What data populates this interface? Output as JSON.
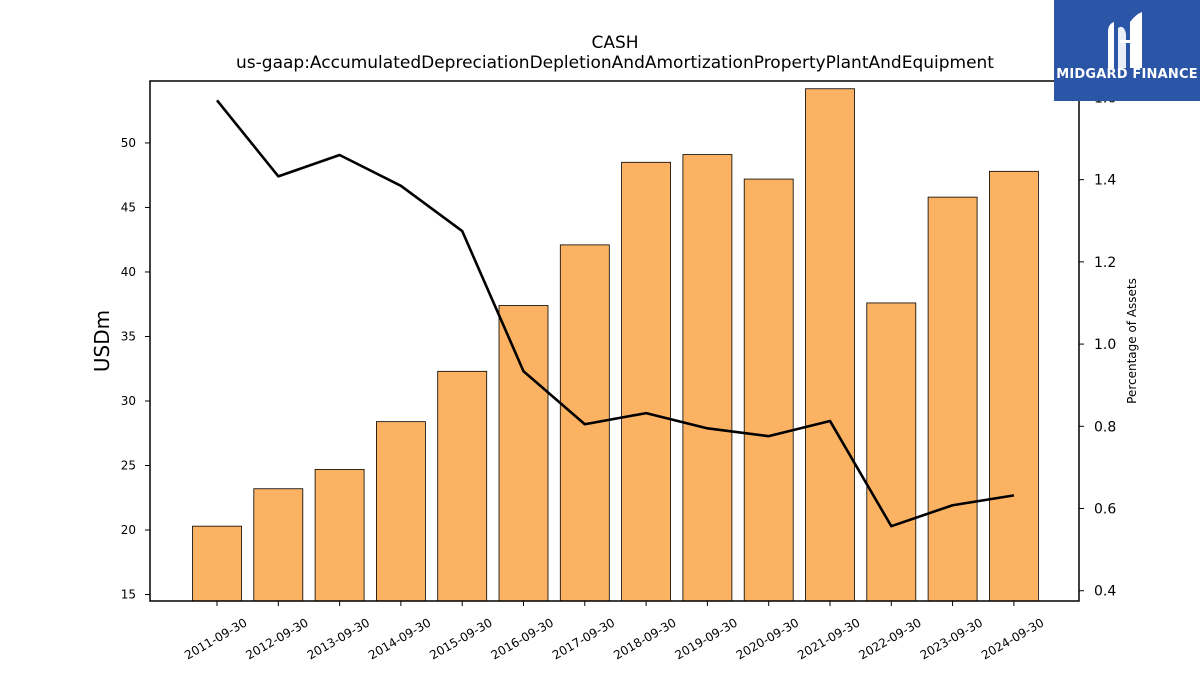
{
  "brand": {
    "name": "MIDGARD FINANCE",
    "logo_icon": "midgard-m-logo-icon",
    "color": "#2b56a8"
  },
  "chart_data": {
    "type": "bar",
    "title": "CASH",
    "subtitle": "us-gaap:AccumulatedDepreciationDepletionAndAmortizationPropertyPlantAndEquipment",
    "ylabel": "USDm",
    "y2label": "Percentage of Assets",
    "categories": [
      "2011-09-30",
      "2012-09-30",
      "2013-09-30",
      "2014-09-30",
      "2015-09-30",
      "2016-09-30",
      "2017-09-30",
      "2018-09-30",
      "2019-09-30",
      "2020-09-30",
      "2021-09-30",
      "2022-09-30",
      "2023-09-30",
      "2024-09-30"
    ],
    "series": [
      {
        "type": "bar",
        "axis": "left",
        "color": "#fbb262",
        "values": [
          20.3,
          23.2,
          24.7,
          28.4,
          32.3,
          37.4,
          42.1,
          48.5,
          49.1,
          47.2,
          54.2,
          37.6,
          45.8,
          47.8
        ]
      },
      {
        "type": "line",
        "axis": "right",
        "color": "#000000",
        "values": [
          1.593,
          1.408,
          1.46,
          1.385,
          1.275,
          0.934,
          0.805,
          0.832,
          0.795,
          0.776,
          0.813,
          0.557,
          0.608,
          0.632
        ]
      }
    ],
    "ylim": [
      14.5,
      54.8
    ],
    "y2lim": [
      0.375,
      1.64
    ],
    "yticks": [
      15,
      20,
      25,
      30,
      35,
      40,
      45,
      50
    ],
    "y2ticks": [
      0.4,
      0.6,
      0.8,
      1.0,
      1.2,
      1.4,
      1.6
    ],
    "y2ticklabels": [
      "0.4",
      "0.6",
      "0.8",
      "1.0",
      "1.2",
      "1.4",
      "1.6"
    ],
    "grid": false
  }
}
